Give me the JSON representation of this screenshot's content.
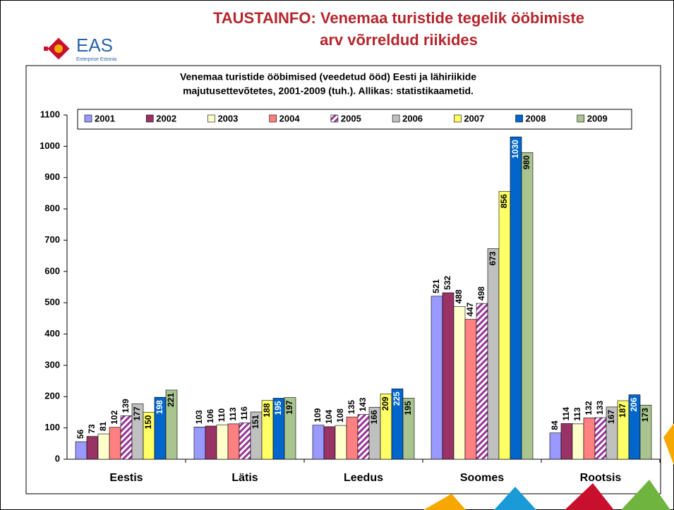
{
  "slide": {
    "title_lines": [
      "TAUSTAINFO: Venemaa turistide tegelik ööbimiste",
      "arv võrreldud riikides"
    ],
    "logo": "EAS",
    "logo_subtitle": "Enterprise Estonia"
  },
  "chart_data": {
    "type": "bar",
    "title_lines": [
      "Venemaa turistide ööbimised (veedetud ööd) Eesti ja lähiriikide",
      "majutusettevõtetes, 2001-2009 (tuh.). Allikas: statistikaametid."
    ],
    "categories": [
      "Eestis",
      "Lätis",
      "Leedus",
      "Soomes",
      "Rootsis"
    ],
    "series": [
      {
        "name": "2001",
        "color": "#9999ff",
        "values": [
          56,
          103,
          109,
          521,
          84
        ]
      },
      {
        "name": "2002",
        "color": "#993366",
        "values": [
          73,
          106,
          104,
          532,
          114
        ]
      },
      {
        "name": "2003",
        "color": "#ffffcc",
        "values": [
          81,
          110,
          108,
          488,
          113
        ]
      },
      {
        "name": "2004",
        "color": "#ff8080",
        "values": [
          102,
          113,
          135,
          447,
          132
        ]
      },
      {
        "name": "2005",
        "color": "#993399",
        "hatch": true,
        "values": [
          139,
          116,
          143,
          498,
          133
        ]
      },
      {
        "name": "2006",
        "color": "#c0c0c0",
        "values": [
          177,
          151,
          166,
          673,
          167
        ]
      },
      {
        "name": "2007",
        "color": "#ffff66",
        "values": [
          150,
          188,
          209,
          856,
          187
        ]
      },
      {
        "name": "2008",
        "color": "#0066cc",
        "values": [
          198,
          195,
          225,
          1030,
          206
        ]
      },
      {
        "name": "2009",
        "color": "#a9c48f",
        "values": [
          221,
          197,
          195,
          980,
          173
        ]
      }
    ],
    "ylim": [
      0,
      1100
    ],
    "yticks": [
      0,
      100,
      200,
      300,
      400,
      500,
      600,
      700,
      800,
      900,
      1000,
      1100
    ]
  }
}
